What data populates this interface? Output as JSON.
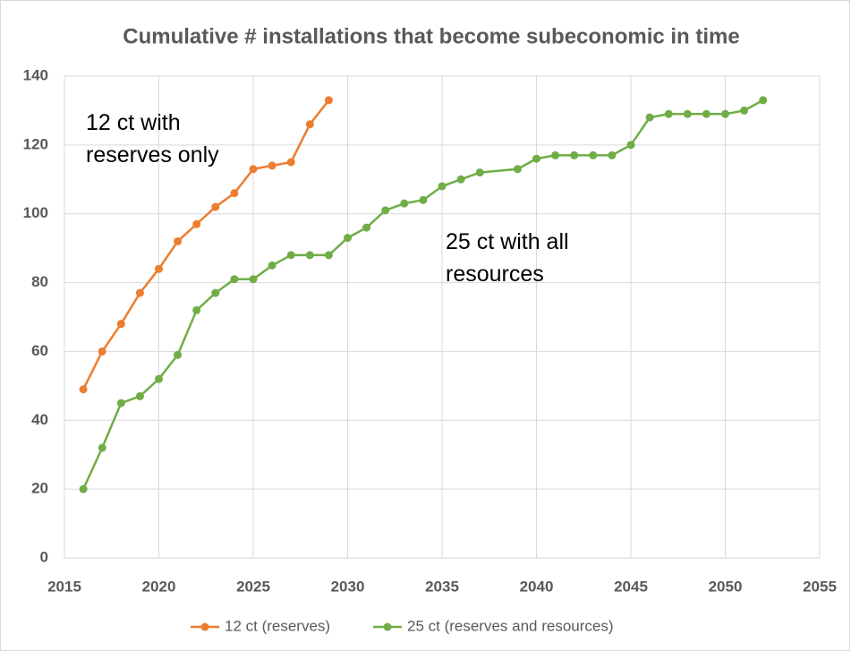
{
  "chart_data": {
    "type": "line",
    "title": "Cumulative # installations that become subeconomic in time",
    "annotations": [
      [
        "12 ct with",
        "reserves only"
      ],
      [
        "25 ct with all",
        "resources"
      ]
    ],
    "series": [
      {
        "name": "12 ct (reserves)",
        "color": "#ed7d31",
        "x": [
          2016,
          2017,
          2018,
          2019,
          2020,
          2021,
          2022,
          2023,
          2024,
          2025,
          2026,
          2027,
          2028,
          2029
        ],
        "values": [
          49,
          60,
          68,
          77,
          84,
          92,
          97,
          102,
          106,
          113,
          114,
          115,
          126,
          133
        ]
      },
      {
        "name": "25 ct (reserves and resources)",
        "color": "#70ad47",
        "x": [
          2016,
          2017,
          2018,
          2019,
          2020,
          2021,
          2022,
          2023,
          2024,
          2025,
          2026,
          2027,
          2028,
          2029,
          2030,
          2031,
          2032,
          2033,
          2034,
          2035,
          2036,
          2037,
          2039,
          2040,
          2041,
          2042,
          2043,
          2044,
          2045,
          2046,
          2047,
          2048,
          2049,
          2050,
          2051,
          2052
        ],
        "values": [
          20,
          32,
          45,
          47,
          52,
          59,
          72,
          77,
          81,
          81,
          85,
          88,
          88,
          88,
          93,
          96,
          101,
          103,
          104,
          108,
          110,
          112,
          113,
          116,
          117,
          117,
          117,
          117,
          120,
          128,
          129,
          129,
          129,
          129,
          130,
          133
        ]
      }
    ],
    "xlim": [
      2015,
      2055
    ],
    "xticks": [
      2015,
      2020,
      2025,
      2030,
      2035,
      2040,
      2045,
      2050,
      2055
    ],
    "ylim": [
      0,
      140
    ],
    "yticks": [
      0,
      20,
      40,
      60,
      80,
      100,
      120,
      140
    ],
    "grid": true,
    "legend": "bottom"
  }
}
